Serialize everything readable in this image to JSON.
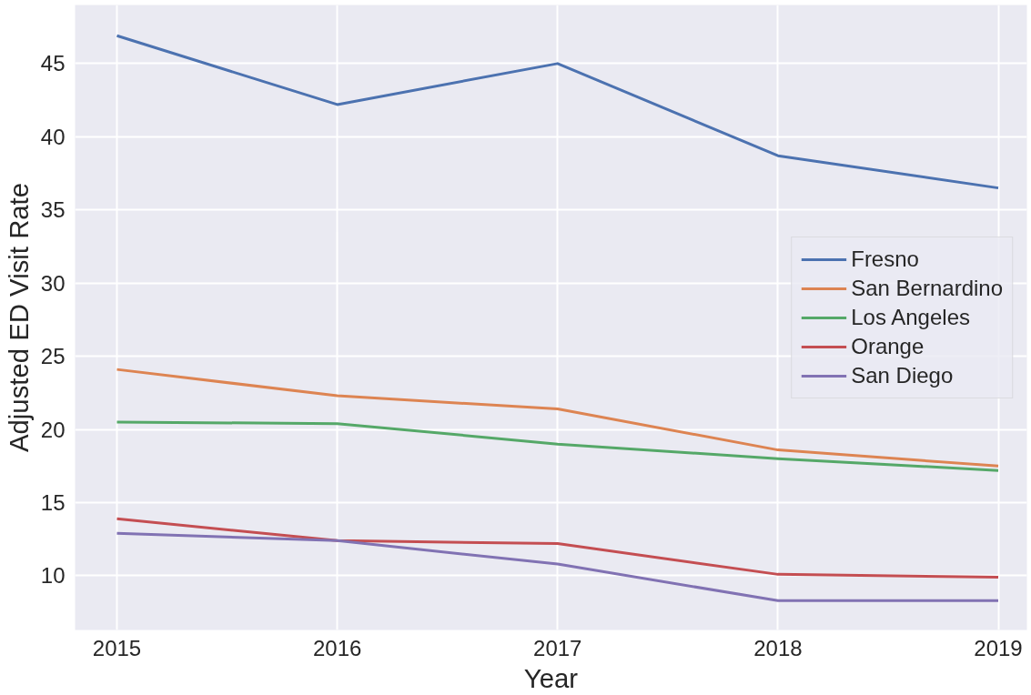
{
  "chart_data": {
    "type": "line",
    "xlabel": "Year",
    "ylabel": "Adjusted ED Visit Rate",
    "x": [
      2015,
      2016,
      2017,
      2018,
      2019
    ],
    "xlim": [
      2014.81,
      2019.13
    ],
    "xticks": [
      2015,
      2016,
      2017,
      2018,
      2019
    ],
    "ylim": [
      6.3,
      49.0
    ],
    "yticks": [
      10,
      15,
      20,
      25,
      30,
      35,
      40,
      45
    ],
    "grid": true,
    "legend": "right",
    "marker": "none",
    "line_style": "solid",
    "series": [
      {
        "name": "Fresno",
        "color": "#4c72b0",
        "values": [
          46.9,
          42.2,
          45.0,
          38.7,
          36.5
        ]
      },
      {
        "name": "San Bernardino",
        "color": "#dd8452",
        "values": [
          24.1,
          22.3,
          21.4,
          18.6,
          17.5
        ]
      },
      {
        "name": "Los Angeles",
        "color": "#55a868",
        "values": [
          20.5,
          20.4,
          19.0,
          18.0,
          17.2
        ]
      },
      {
        "name": "Orange",
        "color": "#c44e52",
        "values": [
          13.9,
          12.4,
          12.2,
          10.1,
          9.9
        ]
      },
      {
        "name": "San Diego",
        "color": "#8172b3",
        "values": [
          12.9,
          12.4,
          10.8,
          8.3,
          8.3
        ]
      }
    ]
  }
}
